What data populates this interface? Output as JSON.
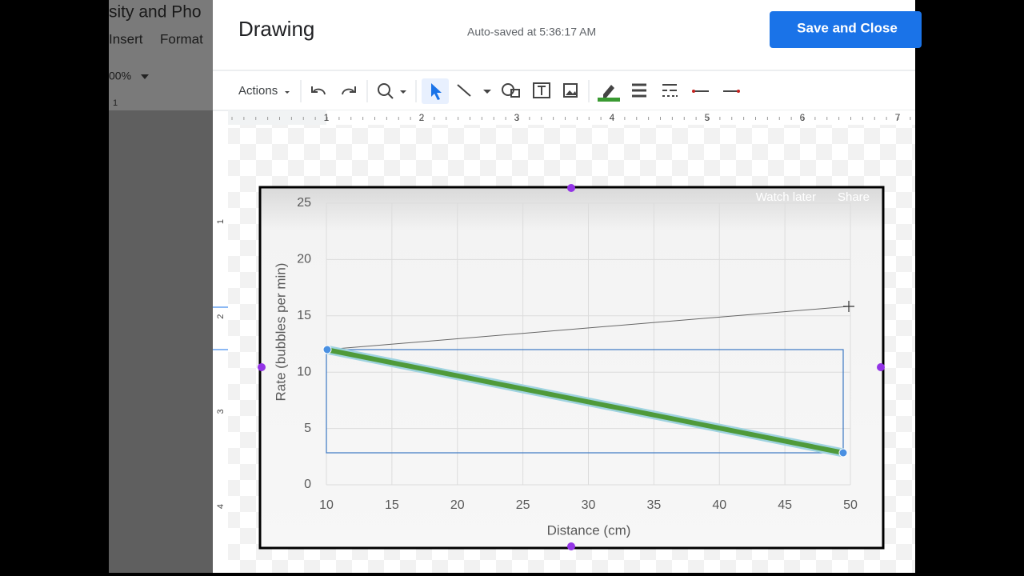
{
  "document": {
    "title_fragment": "sity and Pho",
    "menu": [
      "Insert",
      "Format"
    ],
    "zoom": "00%",
    "ruler_label": "1"
  },
  "dialog": {
    "title": "Drawing",
    "autosave": "Auto-saved at 5:36:17 AM",
    "save_button": "Save and Close",
    "actions_menu": "Actions"
  },
  "rulers": {
    "horizontal": [
      "1",
      "2",
      "3",
      "4",
      "5",
      "6",
      "7"
    ],
    "vertical": [
      "1",
      "2",
      "3",
      "4"
    ]
  },
  "chart": {
    "ylabel": "Rate (bubbles per min)",
    "xlabel": "Distance (cm)",
    "xlim": [
      10,
      50
    ],
    "ylim": [
      0,
      25
    ],
    "xticks": [
      10,
      15,
      20,
      25,
      30,
      35,
      40,
      45,
      50
    ],
    "yticks": [
      0,
      5,
      10,
      15,
      20,
      25
    ]
  },
  "video_overlay": {
    "watch_later": "Watch later",
    "share": "Share"
  }
}
